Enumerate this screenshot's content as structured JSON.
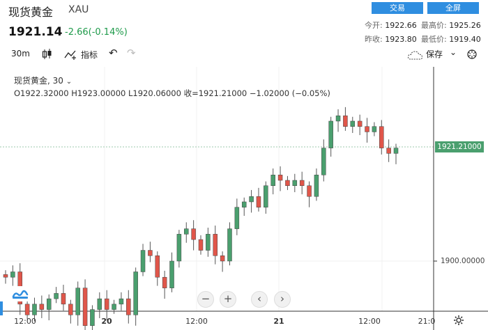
{
  "header": {
    "title": "现货黄金",
    "code": "XAU",
    "price": "1921.14",
    "change": "-2.66(-0.14%)",
    "trade_button": "交易",
    "fullscreen_button": "全屏"
  },
  "stats": {
    "open_label": "今开:",
    "open_value": "1922.66",
    "high_label": "最高价:",
    "high_value": "1925.26",
    "prev_close_label": "昨收:",
    "prev_close_value": "1923.80",
    "low_label": "最低价:",
    "low_value": "1919.40"
  },
  "toolbar": {
    "interval": "30m",
    "indicators": "指标",
    "save": "保存"
  },
  "legend": {
    "symbol": "现货黄金, 30",
    "ohlc": "O1922.32000   H1923.00000   L1920.06000   收=1921.21000   −1.02000 (−0.05%)"
  },
  "axis": {
    "current_price_label": "1921.21000",
    "y_tick": "1900.00000",
    "x_ticks": [
      "12:00",
      "20",
      "12:00",
      "21",
      "12:00",
      "21:0"
    ]
  },
  "colors": {
    "up": "#4a9f6e",
    "down": "#e0564a",
    "accent": "#2f8ee0"
  },
  "chart_data": {
    "type": "candlestick",
    "x_ticks": [
      "12:00",
      "20",
      "12:00",
      "21",
      "12:00",
      "21:0"
    ],
    "y_ticks": [
      1900.0
    ],
    "last_price": 1921.21,
    "closes": [
      1897,
      1898,
      1892,
      1890,
      1892,
      1891,
      1893,
      1894,
      1892,
      1890,
      1895,
      1888,
      1891,
      1893,
      1891,
      1892,
      1893,
      1890,
      1898,
      1902,
      1901,
      1897,
      1895,
      1900,
      1905,
      1906,
      1904,
      1902,
      1905,
      1901,
      1900,
      1906,
      1910,
      1911,
      1912,
      1910,
      1914,
      1916,
      1915,
      1914,
      1915,
      1914,
      1912,
      1916,
      1921,
      1926,
      1927,
      1925,
      1926,
      1925,
      1924,
      1925,
      1921,
      1920,
      1921
    ]
  }
}
